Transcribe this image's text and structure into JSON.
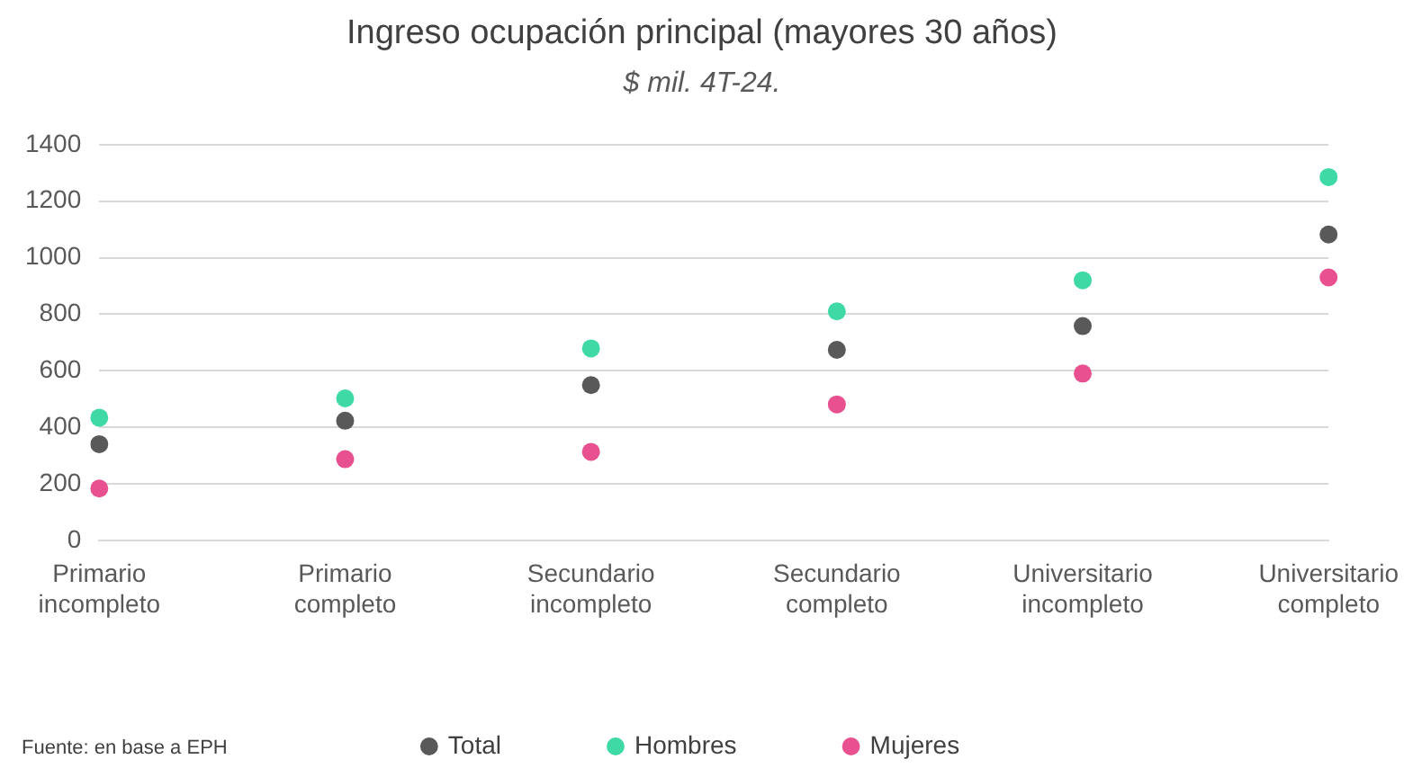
{
  "chart_data": {
    "type": "scatter",
    "title": "Ingreso ocupación principal (mayores 30 años)",
    "subtitle": "$ mil. 4T-24.",
    "categories": [
      "Primario incompleto",
      "Primario completo",
      "Secundario incompleto",
      "Secundario completo",
      "Universitario incompleto",
      "Universitario completo"
    ],
    "series": [
      {
        "name": "Total",
        "color": "#595959",
        "values": [
          340,
          423,
          549,
          674,
          758,
          1082
        ]
      },
      {
        "name": "Hombres",
        "color": "#3fd9a6",
        "values": [
          434,
          502,
          679,
          810,
          920,
          1285
        ]
      },
      {
        "name": "Mujeres",
        "color": "#e8508f",
        "values": [
          183,
          287,
          313,
          481,
          590,
          930
        ]
      }
    ],
    "ylim": [
      0,
      1400
    ],
    "yticks": [
      0,
      200,
      400,
      600,
      800,
      1000,
      1200,
      1400
    ],
    "grid": "y",
    "legend": "bottom",
    "marker": "circle",
    "annotations": [
      "Fuente: en base a EPH"
    ]
  }
}
